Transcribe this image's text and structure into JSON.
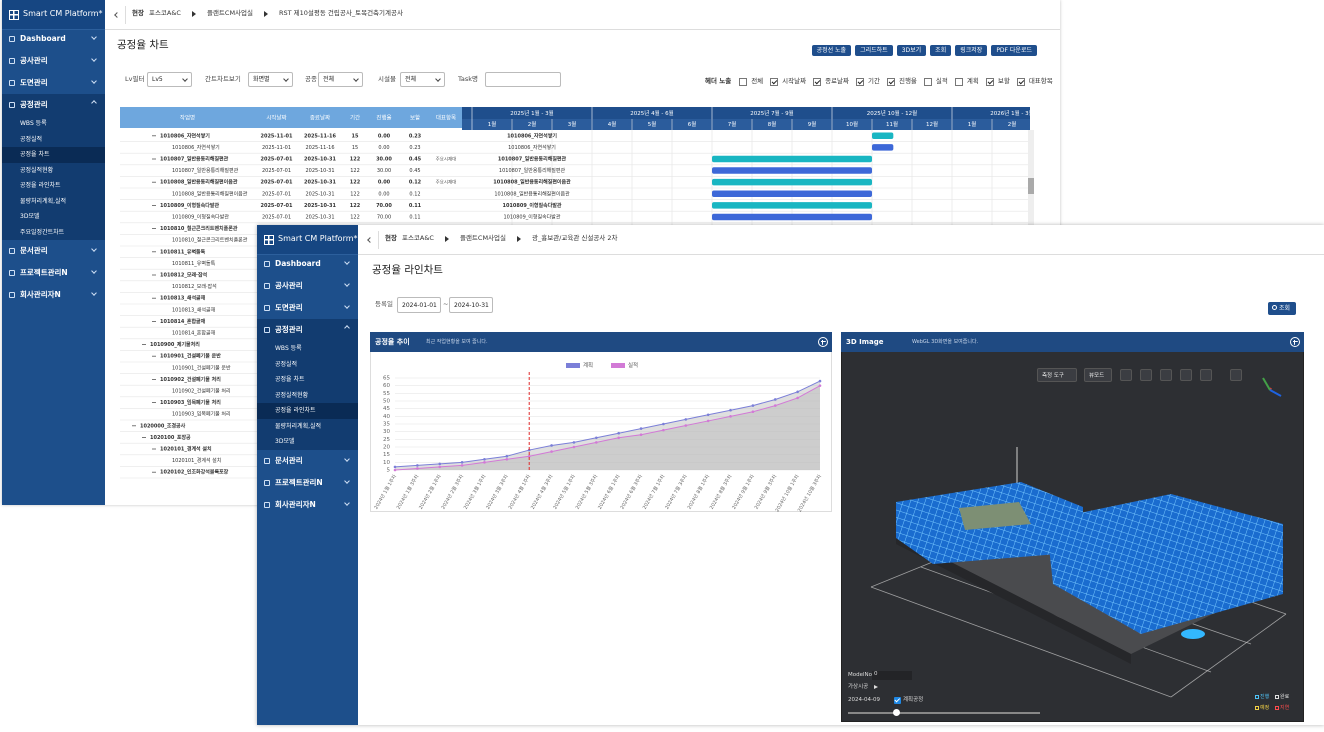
{
  "back": {
    "logo": "Smart CM Platform*",
    "breadcrumb": [
      "현장",
      "포스코A&C",
      "플랜트CM사업실",
      "RST 제10설평동 건립공사_토목건축기계공사"
    ],
    "menu": [
      "Dashboard",
      "공사관리",
      "도면관리",
      "공정관리",
      "문서관리",
      "프로젝트관리N",
      "회사관리자N"
    ],
    "submenu": [
      "WBS 등록",
      "공정실적",
      "공정율 차트",
      "공정실적현황",
      "공정율 라인차트",
      "물량처리계획,실적",
      "3D모델",
      "주요일정간트차트"
    ],
    "active": 3,
    "active_sub": 2,
    "title": "공정율 차트",
    "buttons": [
      "공정선 노출",
      "그리드하트",
      "3D보기",
      "조회",
      "링크저장",
      "PDF 다운로드"
    ],
    "filters": [
      {
        "label": "Lv필터",
        "value": "Lv5"
      },
      {
        "label": "간트차트보기",
        "value": "화면별"
      },
      {
        "label": "공종",
        "value": "전체"
      },
      {
        "label": "시설물",
        "value": "전체"
      },
      {
        "label": "Task명"
      }
    ],
    "header_label": "헤더 노출",
    "header_options": [
      {
        "label": "전체",
        "checked": false
      },
      {
        "label": "시작날짜",
        "checked": true
      },
      {
        "label": "종료날짜",
        "checked": true
      },
      {
        "label": "기간",
        "checked": true
      },
      {
        "label": "진행율",
        "checked": true
      },
      {
        "label": "실적",
        "checked": false
      },
      {
        "label": "계획",
        "checked": false
      },
      {
        "label": "보할",
        "checked": true
      },
      {
        "label": "대표항목",
        "checked": true
      }
    ],
    "table": {
      "columns": [
        "작업명",
        "시작날짜",
        "종료날짜",
        "기간",
        "진행율",
        "보할",
        "대표항목"
      ],
      "rows": [
        {
          "name": "1010806_자연석쌓기",
          "level": 2,
          "group": true,
          "cells": [
            "2025-11-01",
            "2025-11-16",
            "15",
            "0.00",
            "0.23"
          ]
        },
        {
          "name": "1010806_자연석쌓기",
          "level": 3,
          "cells": [
            "2025-11-01",
            "2025-11-16",
            "15",
            "0.00",
            "0.23"
          ]
        },
        {
          "name": "1010807_일반용통리해질편관",
          "level": 2,
          "group": true,
          "cells": [
            "2025-07-01",
            "2025-10-31",
            "122",
            "30.00",
            "0.45"
          ],
          "rep": "주요시재대"
        },
        {
          "name": "1010807_일반용통리해질편관",
          "level": 3,
          "cells": [
            "2025-07-01",
            "2025-10-31",
            "122",
            "30.00",
            "0.45"
          ]
        },
        {
          "name": "1010808_일반용통리해질편이음관",
          "level": 2,
          "group": true,
          "cells": [
            "2025-07-01",
            "2025-10-31",
            "122",
            "0.00",
            "0.12"
          ],
          "rep": "주요시재대"
        },
        {
          "name": "1010808_일반용통리해질편이음관",
          "level": 3,
          "cells": [
            "2025-07-01",
            "2025-10-31",
            "122",
            "0.00",
            "0.12"
          ]
        },
        {
          "name": "1010809_이형질속다발관",
          "level": 2,
          "group": true,
          "cells": [
            "2025-07-01",
            "2025-10-31",
            "122",
            "70.00",
            "0.11"
          ]
        },
        {
          "name": "1010809_이형질속다발관",
          "level": 3,
          "cells": [
            "2025-07-01",
            "2025-10-31",
            "122",
            "70.00",
            "0.11"
          ]
        },
        {
          "name": "1010810_철근콘크리트벤치플론관",
          "level": 2,
          "group": true
        },
        {
          "name": "1010810_철근콘크리트벤치플론관",
          "level": 3
        },
        {
          "name": "1010811_유벽돌톡",
          "level": 2,
          "group": true
        },
        {
          "name": "1010811_유벽돌톡",
          "level": 3
        },
        {
          "name": "1010812_모래·잡석",
          "level": 2,
          "group": true
        },
        {
          "name": "1010812_모래·잡석",
          "level": 3
        },
        {
          "name": "1010813_쇄석골재",
          "level": 2,
          "group": true
        },
        {
          "name": "1010813_쇄석골재",
          "level": 3
        },
        {
          "name": "1010814_혼합골재",
          "level": 2,
          "group": true
        },
        {
          "name": "1010814_혼합골재",
          "level": 3
        },
        {
          "name": "1010900_제기물처리",
          "level": 1,
          "group": true
        },
        {
          "name": "1010901_건설폐기물 운반",
          "level": 2,
          "group": true
        },
        {
          "name": "1010901_건설폐기물 운반",
          "level": 3
        },
        {
          "name": "1010902_건설폐기물 처리",
          "level": 2,
          "group": true
        },
        {
          "name": "1010902_건설폐기물 처리",
          "level": 3
        },
        {
          "name": "1010903_임목폐기물 처리",
          "level": 2,
          "group": true
        },
        {
          "name": "1010903_임목폐기물 처리",
          "level": 3
        },
        {
          "name": "1020000_조경공사",
          "level": 0,
          "group": true
        },
        {
          "name": "1020100_포장공",
          "level": 1,
          "group": true
        },
        {
          "name": "1020101_경계석 설치",
          "level": 2,
          "group": true
        },
        {
          "name": "1020101_경계석 설치",
          "level": 3
        },
        {
          "name": "1020102_인조화강석블록포장",
          "level": 2,
          "group": true
        }
      ]
    },
    "gantt": {
      "quarters": [
        "2025년 1월 - 3월",
        "2025년 4월 - 6월",
        "2025년 7월 - 9월",
        "2025년 10월 - 12월",
        "2026년 1월 - 3월"
      ],
      "months": [
        "1월",
        "2월",
        "3월",
        "4월",
        "5월",
        "6월",
        "7월",
        "8월",
        "9월",
        "10월",
        "11월",
        "12월",
        "1월",
        "2월"
      ]
    }
  },
  "front": {
    "logo": "Smart CM Platform*",
    "breadcrumb": [
      "현장",
      "포스코A&C",
      "플랜트CM사업실",
      "광_흉보관/교육관 신설공사 2차"
    ],
    "menu": [
      "Dashboard",
      "공사관리",
      "도면관리",
      "공정관리",
      "문서관리",
      "프로젝트관리N",
      "회사관리자N"
    ],
    "submenu": [
      "WBS 등록",
      "공정실적",
      "공정율 차트",
      "공정실적현황",
      "공정율 라인차트",
      "물량처리계획,실적",
      "3D모델"
    ],
    "active": 3,
    "active_sub": 4,
    "title": "공정율 라인차트",
    "date_label": "등록일",
    "date_from": "2024-01-01",
    "date_sep": "~",
    "date_to": "2024-10-31",
    "search_button": "조회",
    "chart_panel": {
      "title": "공정율 추이",
      "subtitle": "최근 작업현황을 보여 줍니다."
    }
  },
  "chart_data": {
    "type": "line",
    "categories": [
      "2024년 1월 1주차",
      "2024년 1월 3주차",
      "2024년 2월 1주차",
      "2024년 2월 3주차",
      "2024년 3월 1주차",
      "2024년 3월 3주차",
      "2024년 4월 1주차",
      "2024년 4월 3주차",
      "2024년 5월 1주차",
      "2024년 5월 3주차",
      "2024년 6월 1주차",
      "2024년 6월 3주차",
      "2024년 7월 1주차",
      "2024년 7월 3주차",
      "2024년 8월 1주차",
      "2024년 8월 3주차",
      "2024년 9월 1주차",
      "2024년 9월 3주차",
      "2024년 10월 1주차",
      "2024년 10월 3주차"
    ],
    "series": [
      {
        "name": "계획",
        "color": "#7b7fd8",
        "values": [
          7,
          8,
          9,
          10,
          12,
          14,
          18,
          21,
          23,
          26,
          29,
          32,
          35,
          38,
          41,
          44,
          47,
          51,
          56,
          63
        ]
      },
      {
        "name": "실적",
        "color": "#d27ad6",
        "values": [
          5,
          6,
          7,
          8,
          10,
          12,
          14,
          17,
          20,
          23,
          26,
          28,
          31,
          34,
          37,
          40,
          43,
          47,
          52,
          60
        ]
      }
    ],
    "area": true,
    "area_color": "#b9b9b9",
    "ylim": [
      5,
      65
    ],
    "yticks": [
      5,
      10,
      15,
      20,
      25,
      30,
      35,
      40,
      45,
      50,
      55,
      60,
      65
    ],
    "grid": true,
    "legend": "top",
    "reference_line": {
      "x": "2024년 4월 1주차",
      "color": "#e02a2a"
    }
  },
  "viewer": {
    "title": "3D Image",
    "subtitle": "WebGL 3D화면을 보여줍니다.",
    "tools": [
      "측정 도구",
      "뷰모드"
    ],
    "model_no_label": "ModelNo",
    "model_no": "0",
    "sim_label": "가상시공",
    "date": "2024-04-09",
    "plan_label": "계획공정",
    "plan_checked": true,
    "legend": [
      {
        "label": "진행",
        "color": "#4fc3f7"
      },
      {
        "label": "완료",
        "color": "#e0e0e0"
      },
      {
        "label": "예정",
        "color": "#f2d046"
      },
      {
        "label": "지연",
        "color": "#ff4d4d"
      }
    ]
  }
}
